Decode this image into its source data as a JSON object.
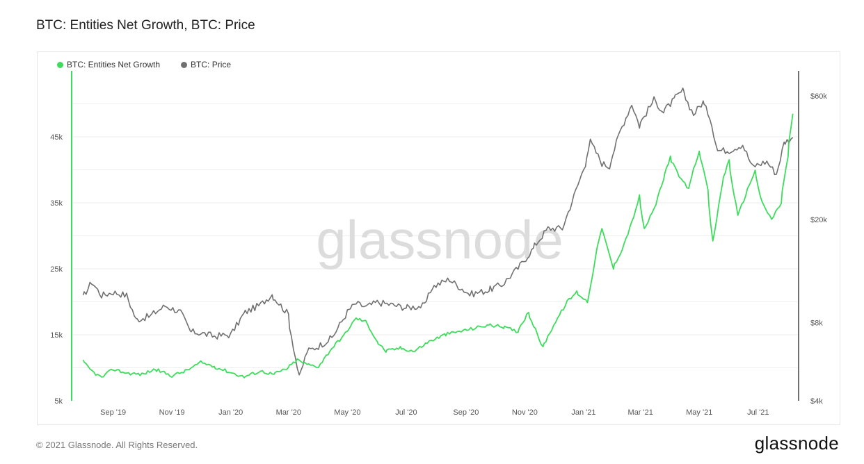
{
  "title": "BTC: Entities Net Growth, BTC: Price",
  "footer": "© 2021 Glassnode. All Rights Reserved.",
  "brand": "glassnode",
  "watermark": "glassnode",
  "colors": {
    "growth": "#3ddc5c",
    "price": "#707070"
  },
  "legend": [
    {
      "label": "BTC: Entities Net Growth",
      "color": "#3ddc5c"
    },
    {
      "label": "BTC: Price",
      "color": "#707070"
    }
  ],
  "chart_data": {
    "type": "line",
    "title": "BTC: Entities Net Growth, BTC: Price",
    "x_ticks": [
      "Sep '19",
      "Nov '19",
      "Jan '20",
      "Mar '20",
      "May '20",
      "Jul '20",
      "Sep '20",
      "Nov '20",
      "Jan '21",
      "Mar '21",
      "May '21",
      "Jul '21"
    ],
    "y_left": {
      "ticks": [
        "5k",
        "15k",
        "25k",
        "35k",
        "45k"
      ],
      "tick_values": [
        5000,
        15000,
        25000,
        35000,
        45000
      ],
      "ylim": [
        5000,
        55000
      ]
    },
    "y_right": {
      "scale": "log",
      "ticks": [
        "$4k",
        "$8k",
        "$20k",
        "$60k"
      ],
      "tick_values": [
        4000,
        8000,
        20000,
        60000
      ],
      "ylim": [
        4000,
        75000
      ]
    },
    "grid": true,
    "legend_position": "top-left",
    "series": [
      {
        "name": "BTC: Entities Net Growth",
        "axis": "left",
        "color": "#3ddc5c",
        "points": [
          [
            "2019-08-01",
            11000
          ],
          [
            "2019-08-10",
            9500
          ],
          [
            "2019-08-20",
            8500
          ],
          [
            "2019-09-01",
            9800
          ],
          [
            "2019-09-15",
            9200
          ],
          [
            "2019-10-01",
            9000
          ],
          [
            "2019-10-15",
            9800
          ],
          [
            "2019-11-01",
            8800
          ],
          [
            "2019-11-15",
            9500
          ],
          [
            "2019-12-01",
            10800
          ],
          [
            "2019-12-15",
            10200
          ],
          [
            "2020-01-01",
            9300
          ],
          [
            "2020-01-15",
            8600
          ],
          [
            "2020-02-01",
            9500
          ],
          [
            "2020-02-15",
            9000
          ],
          [
            "2020-03-01",
            10000
          ],
          [
            "2020-03-10",
            11200
          ],
          [
            "2020-03-20",
            10500
          ],
          [
            "2020-04-01",
            10200
          ],
          [
            "2020-04-15",
            13000
          ],
          [
            "2020-05-01",
            15500
          ],
          [
            "2020-05-10",
            17500
          ],
          [
            "2020-05-20",
            17000
          ],
          [
            "2020-06-01",
            14000
          ],
          [
            "2020-06-10",
            12500
          ],
          [
            "2020-06-25",
            13000
          ],
          [
            "2020-07-10",
            12500
          ],
          [
            "2020-07-25",
            14000
          ],
          [
            "2020-08-10",
            15000
          ],
          [
            "2020-08-25",
            15500
          ],
          [
            "2020-09-10",
            16000
          ],
          [
            "2020-09-25",
            16500
          ],
          [
            "2020-10-10",
            16200
          ],
          [
            "2020-10-25",
            15500
          ],
          [
            "2020-11-05",
            18500
          ],
          [
            "2020-11-20",
            13000
          ],
          [
            "2020-12-01",
            16500
          ],
          [
            "2020-12-15",
            20000
          ],
          [
            "2020-12-25",
            21500
          ],
          [
            "2021-01-05",
            20000
          ],
          [
            "2021-01-15",
            28000
          ],
          [
            "2021-01-20",
            31000
          ],
          [
            "2021-02-01",
            25000
          ],
          [
            "2021-02-10",
            28000
          ],
          [
            "2021-02-20",
            32000
          ],
          [
            "2021-02-28",
            36000
          ],
          [
            "2021-03-05",
            31000
          ],
          [
            "2021-03-15",
            34000
          ],
          [
            "2021-03-25",
            38500
          ],
          [
            "2021-04-01",
            42000
          ],
          [
            "2021-04-10",
            39000
          ],
          [
            "2021-04-20",
            37000
          ],
          [
            "2021-04-25",
            40000
          ],
          [
            "2021-05-01",
            43000
          ],
          [
            "2021-05-10",
            37000
          ],
          [
            "2021-05-15",
            29000
          ],
          [
            "2021-05-25",
            38000
          ],
          [
            "2021-06-01",
            41500
          ],
          [
            "2021-06-10",
            33000
          ],
          [
            "2021-06-20",
            37000
          ],
          [
            "2021-06-28",
            40000
          ],
          [
            "2021-07-05",
            35000
          ],
          [
            "2021-07-15",
            32500
          ],
          [
            "2021-07-25",
            35000
          ],
          [
            "2021-08-01",
            42000
          ],
          [
            "2021-08-06",
            48500
          ]
        ]
      },
      {
        "name": "BTC: Price",
        "axis": "right",
        "color": "#707070",
        "points": [
          [
            "2019-08-01",
            10000
          ],
          [
            "2019-08-10",
            11500
          ],
          [
            "2019-08-20",
            10200
          ],
          [
            "2019-09-01",
            10500
          ],
          [
            "2019-09-15",
            10200
          ],
          [
            "2019-09-25",
            8200
          ],
          [
            "2019-10-10",
            8500
          ],
          [
            "2019-10-25",
            9300
          ],
          [
            "2019-11-10",
            8800
          ],
          [
            "2019-11-20",
            7400
          ],
          [
            "2019-12-01",
            7300
          ],
          [
            "2019-12-15",
            7100
          ],
          [
            "2020-01-01",
            7200
          ],
          [
            "2020-01-15",
            8700
          ],
          [
            "2020-02-01",
            9400
          ],
          [
            "2020-02-13",
            10300
          ],
          [
            "2020-03-01",
            8600
          ],
          [
            "2020-03-12",
            4900
          ],
          [
            "2020-03-20",
            6200
          ],
          [
            "2020-04-01",
            6500
          ],
          [
            "2020-04-15",
            7000
          ],
          [
            "2020-05-01",
            8800
          ],
          [
            "2020-05-10",
            9500
          ],
          [
            "2020-05-20",
            9200
          ],
          [
            "2020-06-01",
            9600
          ],
          [
            "2020-06-15",
            9400
          ],
          [
            "2020-07-01",
            9150
          ],
          [
            "2020-07-20",
            9300
          ],
          [
            "2020-07-28",
            11000
          ],
          [
            "2020-08-15",
            11800
          ],
          [
            "2020-09-05",
            10300
          ],
          [
            "2020-09-25",
            10700
          ],
          [
            "2020-10-10",
            11300
          ],
          [
            "2020-10-25",
            13000
          ],
          [
            "2020-11-10",
            15500
          ],
          [
            "2020-11-25",
            18500
          ],
          [
            "2020-12-10",
            18500
          ],
          [
            "2020-12-20",
            23500
          ],
          [
            "2021-01-03",
            33000
          ],
          [
            "2021-01-08",
            40000
          ],
          [
            "2021-01-20",
            33000
          ],
          [
            "2021-01-28",
            32000
          ],
          [
            "2021-02-08",
            44000
          ],
          [
            "2021-02-20",
            56000
          ],
          [
            "2021-02-28",
            46000
          ],
          [
            "2021-03-15",
            58000
          ],
          [
            "2021-03-25",
            52000
          ],
          [
            "2021-04-05",
            58000
          ],
          [
            "2021-04-14",
            63000
          ],
          [
            "2021-04-25",
            51000
          ],
          [
            "2021-05-05",
            57000
          ],
          [
            "2021-05-12",
            50000
          ],
          [
            "2021-05-20",
            37000
          ],
          [
            "2021-06-01",
            37000
          ],
          [
            "2021-06-15",
            39000
          ],
          [
            "2021-06-25",
            32000
          ],
          [
            "2021-07-10",
            33500
          ],
          [
            "2021-07-20",
            30000
          ],
          [
            "2021-07-28",
            39500
          ],
          [
            "2021-08-06",
            41500
          ]
        ]
      }
    ]
  }
}
